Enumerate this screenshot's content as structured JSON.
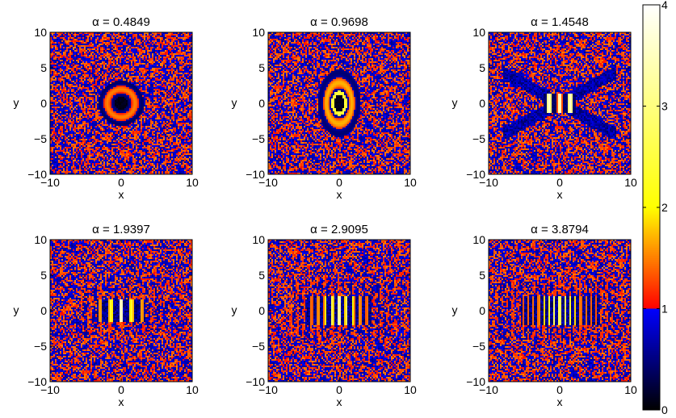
{
  "chart_data": {
    "type": "heatmap",
    "colormap": {
      "stops": [
        {
          "value": 0,
          "color": "#000000"
        },
        {
          "value": 1,
          "color": "#0000ff"
        },
        {
          "value": 1,
          "color": "#ff0000"
        },
        {
          "value": 2,
          "color": "#ffff00"
        },
        {
          "value": 4,
          "color": "#ffffff"
        }
      ],
      "range": [
        0,
        4
      ],
      "ticks": [
        "0",
        "1",
        "2",
        "3",
        "4"
      ]
    },
    "panels": [
      {
        "title": "α = 0.4849",
        "alpha": 0.4849,
        "xlabel": "x",
        "ylabel": "y",
        "xlim": [
          -10,
          10
        ],
        "ylim": [
          -10,
          10
        ],
        "xticks": [
          "−10",
          "0",
          "10"
        ],
        "yticks": [
          "10",
          "5",
          "0",
          "−5",
          "−10"
        ],
        "pattern": "central dark spot surrounded by concentric rings"
      },
      {
        "title": "α = 0.9698",
        "alpha": 0.9698,
        "xlabel": "x",
        "ylabel": "y",
        "xlim": [
          -10,
          10
        ],
        "ylim": [
          -10,
          10
        ],
        "xticks": [
          "−10",
          "0",
          "10"
        ],
        "yticks": [
          "10",
          "5",
          "0",
          "−5",
          "−10"
        ],
        "pattern": "dark elongated core with yellow rim and rings"
      },
      {
        "title": "α = 1.4548",
        "alpha": 1.4548,
        "xlabel": "x",
        "ylabel": "y",
        "xlim": [
          -10,
          10
        ],
        "ylim": [
          -10,
          10
        ],
        "xticks": [
          "−10",
          "0",
          "10"
        ],
        "yticks": [
          "10",
          "5",
          "0",
          "−5",
          "−10"
        ],
        "pattern": "bright central fringes with X-shaped diagonal bands"
      },
      {
        "title": "α = 1.9397",
        "alpha": 1.9397,
        "xlabel": "x",
        "ylabel": "y",
        "xlim": [
          -10,
          10
        ],
        "ylim": [
          -10,
          10
        ],
        "xticks": [
          "−10",
          "0",
          "10"
        ],
        "yticks": [
          "10",
          "5",
          "0",
          "−5",
          "−10"
        ],
        "pattern": "horizontal row of vertical fringes at center"
      },
      {
        "title": "α = 2.9095",
        "alpha": 2.9095,
        "xlabel": "x",
        "ylabel": "y",
        "xlim": [
          -10,
          10
        ],
        "ylim": [
          -10,
          10
        ],
        "xticks": [
          "−10",
          "0",
          "10"
        ],
        "yticks": [
          "10",
          "5",
          "0",
          "−5",
          "−10"
        ],
        "pattern": "tighter vertical fringes along x axis"
      },
      {
        "title": "α = 3.8794",
        "alpha": 3.8794,
        "xlabel": "x",
        "ylabel": "y",
        "xlim": [
          -10,
          10
        ],
        "ylim": [
          -10,
          10
        ],
        "xticks": [
          "−10",
          "0",
          "10"
        ],
        "yticks": [
          "10",
          "5",
          "0",
          "−5",
          "−10"
        ],
        "pattern": "many fine vertical fringes along x axis"
      }
    ]
  }
}
